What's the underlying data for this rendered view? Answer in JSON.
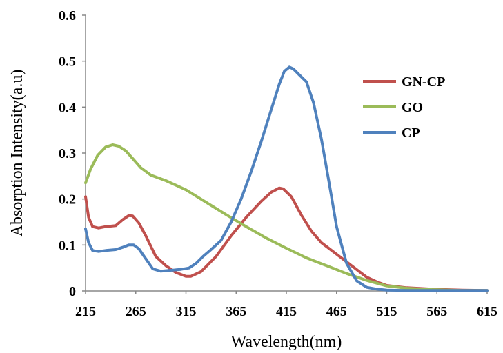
{
  "chart_data": {
    "type": "line",
    "title": "",
    "xlabel": "Wavelength(nm)",
    "ylabel": "Absorption Intensity(a.u)",
    "xlim": [
      215,
      615
    ],
    "ylim": [
      0,
      0.6
    ],
    "x_ticks": [
      "215",
      "265",
      "315",
      "365",
      "415",
      "465",
      "515",
      "565",
      "615"
    ],
    "y_ticks": [
      "0",
      "0.1",
      "0.2",
      "0.3",
      "0.4",
      "0.5",
      "0.6"
    ],
    "grid": false,
    "legend_position": "right",
    "series": [
      {
        "name": "GN-CP",
        "color": "#c0504d",
        "x": [
          215,
          218,
          222,
          228,
          235,
          245,
          252,
          258,
          262,
          268,
          275,
          285,
          295,
          305,
          315,
          320,
          330,
          345,
          360,
          375,
          390,
          400,
          408,
          412,
          420,
          430,
          440,
          450,
          465,
          480,
          495,
          505,
          515,
          535,
          560,
          590,
          615
        ],
        "y": [
          0.205,
          0.16,
          0.14,
          0.137,
          0.14,
          0.142,
          0.155,
          0.164,
          0.163,
          0.148,
          0.12,
          0.075,
          0.055,
          0.04,
          0.032,
          0.032,
          0.042,
          0.075,
          0.12,
          0.16,
          0.195,
          0.215,
          0.224,
          0.222,
          0.205,
          0.165,
          0.13,
          0.105,
          0.08,
          0.055,
          0.03,
          0.02,
          0.012,
          0.007,
          0.004,
          0.002,
          0.001
        ]
      },
      {
        "name": "GO",
        "color": "#9bbb59",
        "x": [
          215,
          220,
          227,
          235,
          242,
          248,
          255,
          262,
          270,
          280,
          295,
          315,
          335,
          355,
          375,
          395,
          415,
          435,
          455,
          475,
          495,
          515,
          535,
          560,
          590,
          615
        ],
        "y": [
          0.235,
          0.265,
          0.295,
          0.313,
          0.318,
          0.315,
          0.305,
          0.288,
          0.268,
          0.252,
          0.24,
          0.22,
          0.193,
          0.166,
          0.14,
          0.115,
          0.093,
          0.072,
          0.055,
          0.038,
          0.023,
          0.011,
          0.006,
          0.003,
          0.001,
          0.001
        ]
      },
      {
        "name": "CP",
        "color": "#4f81bd",
        "x": [
          215,
          218,
          222,
          228,
          235,
          245,
          252,
          258,
          263,
          268,
          275,
          282,
          290,
          300,
          310,
          318,
          325,
          332,
          340,
          350,
          360,
          370,
          380,
          390,
          400,
          408,
          413,
          418,
          422,
          428,
          435,
          442,
          450,
          458,
          465,
          475,
          485,
          495,
          505,
          515,
          535,
          560,
          590,
          615
        ],
        "y": [
          0.135,
          0.105,
          0.088,
          0.086,
          0.088,
          0.09,
          0.095,
          0.1,
          0.1,
          0.092,
          0.07,
          0.048,
          0.043,
          0.045,
          0.047,
          0.05,
          0.06,
          0.075,
          0.09,
          0.11,
          0.15,
          0.2,
          0.26,
          0.325,
          0.395,
          0.45,
          0.478,
          0.487,
          0.483,
          0.47,
          0.455,
          0.41,
          0.33,
          0.23,
          0.14,
          0.06,
          0.022,
          0.008,
          0.004,
          0.002,
          0.001,
          0.001,
          0.001,
          0.001
        ]
      }
    ]
  }
}
